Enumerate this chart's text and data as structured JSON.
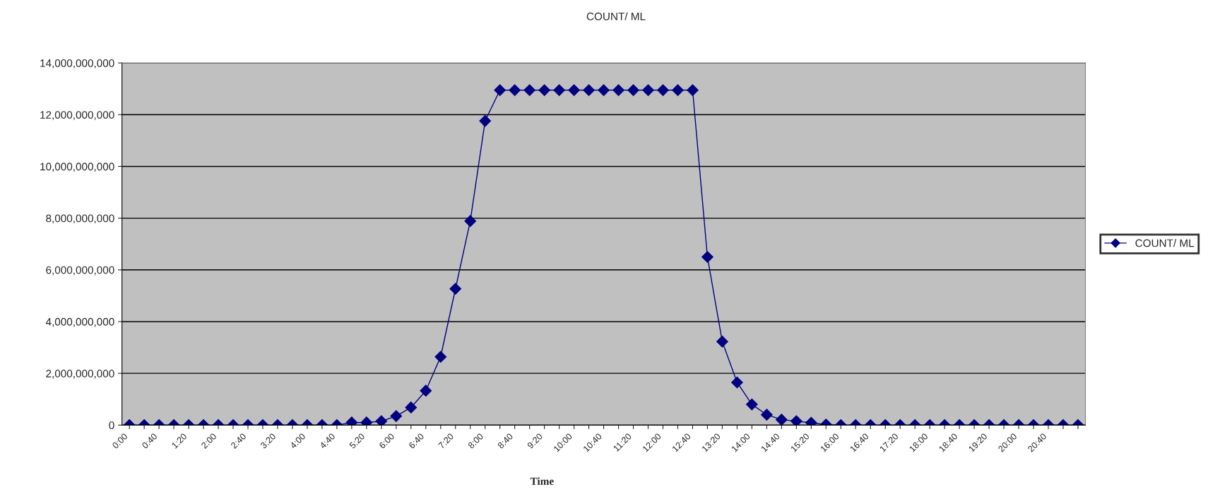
{
  "chart_data": {
    "type": "line",
    "title": "COUNT/ ML",
    "xlabel": "Time",
    "categories": [
      "0:00",
      null,
      "0:40",
      null,
      "1:20",
      null,
      "2:00",
      null,
      "2:40",
      null,
      "3:20",
      null,
      "4:00",
      null,
      "4:40",
      null,
      "5:20",
      null,
      "6:00",
      null,
      "6:40",
      null,
      "7:20",
      null,
      "8:00",
      null,
      "8:40",
      null,
      "9:20",
      null,
      "10:00",
      null,
      "10:40",
      null,
      "11:20",
      null,
      "12:00",
      null,
      "12:40",
      null,
      "13:20",
      null,
      "14:00",
      null,
      "14:40",
      null,
      "15:20",
      null,
      "16:00",
      null,
      "16:40",
      null,
      "17:20",
      null,
      "18:00",
      null,
      "18:40",
      null,
      "19:20",
      null,
      "20:00",
      null,
      "20:40",
      null,
      null
    ],
    "series": [
      {
        "name": "COUNT/ ML",
        "color": "#000080",
        "values": [
          0,
          0,
          0,
          0,
          0,
          0,
          0,
          0,
          0,
          0,
          0,
          0,
          0,
          0,
          0,
          100000000,
          100000000,
          150000000,
          350000000,
          680000000,
          1330000000,
          2640000000,
          5270000000,
          7890000000,
          11760000000,
          12950000000,
          12950000000,
          12950000000,
          12950000000,
          12950000000,
          12950000000,
          12950000000,
          12950000000,
          12950000000,
          12950000000,
          12950000000,
          12950000000,
          12950000000,
          12950000000,
          6500000000,
          3230000000,
          1650000000,
          800000000,
          400000000,
          210000000,
          150000000,
          90000000,
          20000000,
          0,
          0,
          0,
          0,
          0,
          0,
          0,
          0,
          0,
          0,
          0,
          0,
          0,
          0,
          0,
          0,
          0
        ]
      }
    ],
    "ylim": [
      0,
      14000000000
    ],
    "yticks": [
      {
        "value": 0,
        "label": "0"
      },
      {
        "value": 2000000000,
        "label": "2,000,000,000"
      },
      {
        "value": 4000000000,
        "label": "4,000,000,000"
      },
      {
        "value": 6000000000,
        "label": "6,000,000,000"
      },
      {
        "value": 8000000000,
        "label": "8,000,000,000"
      },
      {
        "value": 10000000000,
        "label": "10,000,000,000"
      },
      {
        "value": 12000000000,
        "label": "12,000,000,000"
      },
      {
        "value": 14000000000,
        "label": "14,000,000,000"
      }
    ],
    "grid": "y",
    "legend": "right",
    "marker": "diamond",
    "line_style": "solid"
  }
}
